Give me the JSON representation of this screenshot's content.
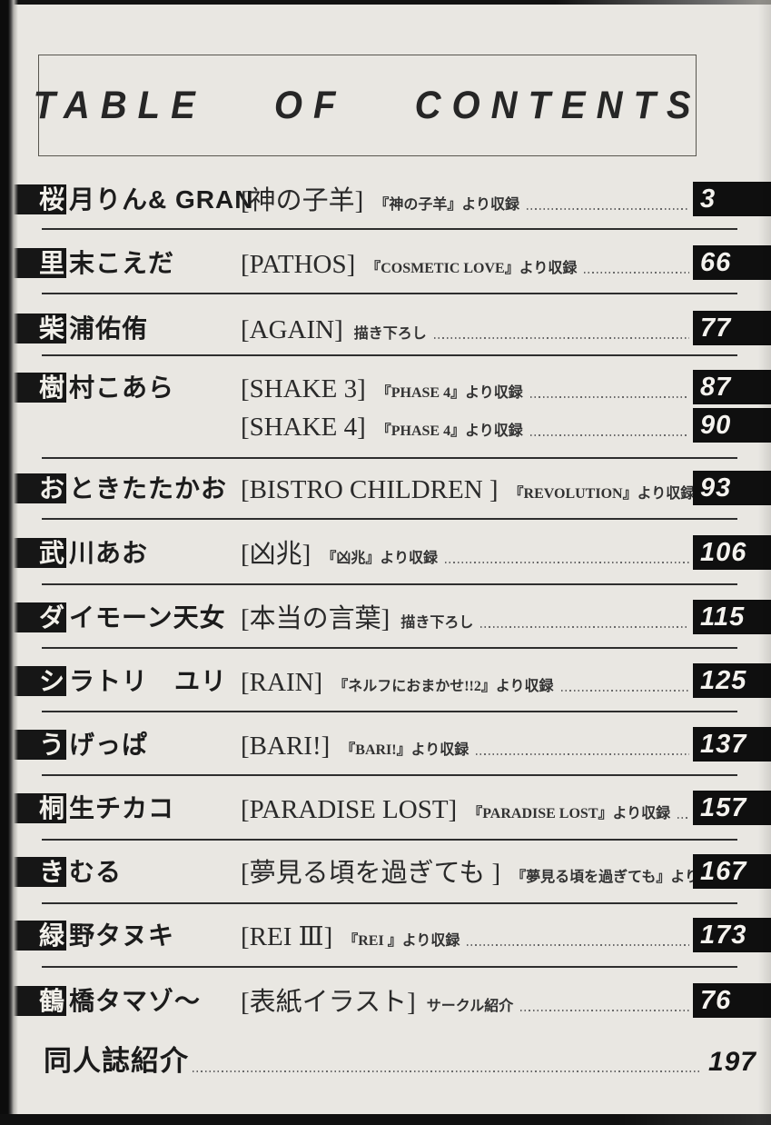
{
  "header": {
    "title": "TABLE OF CONTENTS"
  },
  "colors": {
    "paper": "#e9e7e2",
    "ink": "#1c1c1c",
    "author_bar_bg": "#161616",
    "page_badge_bg": "#0f0f0f",
    "page_badge_text": "#f4f2ee"
  },
  "entries": [
    {
      "author": "桜月りん& GRAN",
      "author_first": "桜",
      "author_rest": "月りん& GRAN",
      "works": [
        {
          "title": "[神の子羊]",
          "note": "『神の子羊』より収録",
          "page": "3"
        }
      ]
    },
    {
      "author": "里末こえだ",
      "author_first": "里",
      "author_rest": "末こえだ",
      "works": [
        {
          "title": "[PATHOS]",
          "note": "『COSMETIC LOVE』より収録",
          "page": "66"
        }
      ]
    },
    {
      "author": "柴浦佑侑",
      "author_first": "柴",
      "author_rest": "浦佑侑",
      "works": [
        {
          "title": "[AGAIN]",
          "note": "描き下ろし",
          "page": "77"
        }
      ]
    },
    {
      "author": "樹村こあら",
      "author_first": "樹",
      "author_rest": "村こあら",
      "works": [
        {
          "title": "[SHAKE 3]",
          "note": "『PHASE 4』より収録",
          "page": "87"
        },
        {
          "title": "[SHAKE 4]",
          "note": "『PHASE 4』より収録",
          "page": "90"
        }
      ]
    },
    {
      "author": "おときたたかお",
      "author_first": "お",
      "author_rest": "ときたたかお",
      "works": [
        {
          "title": "[BISTRO CHILDREN ]",
          "note": "『REVOLUTION』より収録",
          "page": "93"
        }
      ]
    },
    {
      "author": "武川あお",
      "author_first": "武",
      "author_rest": "川あお",
      "works": [
        {
          "title": "[凶兆]",
          "note": "『凶兆』より収録",
          "page": "106"
        }
      ]
    },
    {
      "author": "ダイモーン天女",
      "author_first": "ダ",
      "author_rest": "イモーン天女",
      "works": [
        {
          "title": "[本当の言葉]",
          "note": "描き下ろし",
          "page": "115"
        }
      ]
    },
    {
      "author": "シラトリ　ユリ",
      "author_first": "シ",
      "author_rest": "ラトリ　ユリ",
      "works": [
        {
          "title": "[RAIN]",
          "note": "『ネルフにおまかせ!!2』より収録",
          "page": "125"
        }
      ]
    },
    {
      "author": "うげっぱ",
      "author_first": "う",
      "author_rest": "げっぱ",
      "works": [
        {
          "title": "[BARI!]",
          "note": "『BARI!』より収録",
          "page": "137"
        }
      ]
    },
    {
      "author": "桐生チカコ",
      "author_first": "桐",
      "author_rest": "生チカコ",
      "works": [
        {
          "title": "[PARADISE LOST]",
          "note": "『PARADISE LOST』より収録",
          "page": "157"
        }
      ]
    },
    {
      "author": "きむる",
      "author_first": "き",
      "author_rest": "むる",
      "works": [
        {
          "title": "[夢見る頃を過ぎても ]",
          "note": "『夢見る頃を過ぎても』より収録",
          "page": "167"
        }
      ]
    },
    {
      "author": "緑野タヌキ",
      "author_first": "緑",
      "author_rest": "野タヌキ",
      "works": [
        {
          "title": "[REI Ⅲ]",
          "note": "『REI 』より収録",
          "page": "173"
        }
      ]
    },
    {
      "author": "鶴橋タマゾ～",
      "author_first": "鶴",
      "author_rest": "橋タマゾ～",
      "works": [
        {
          "title": "[表紙イラスト]",
          "note": "サークル紹介",
          "page": "76"
        }
      ]
    }
  ],
  "footer": {
    "label": "同人誌紹介",
    "page": "197"
  }
}
